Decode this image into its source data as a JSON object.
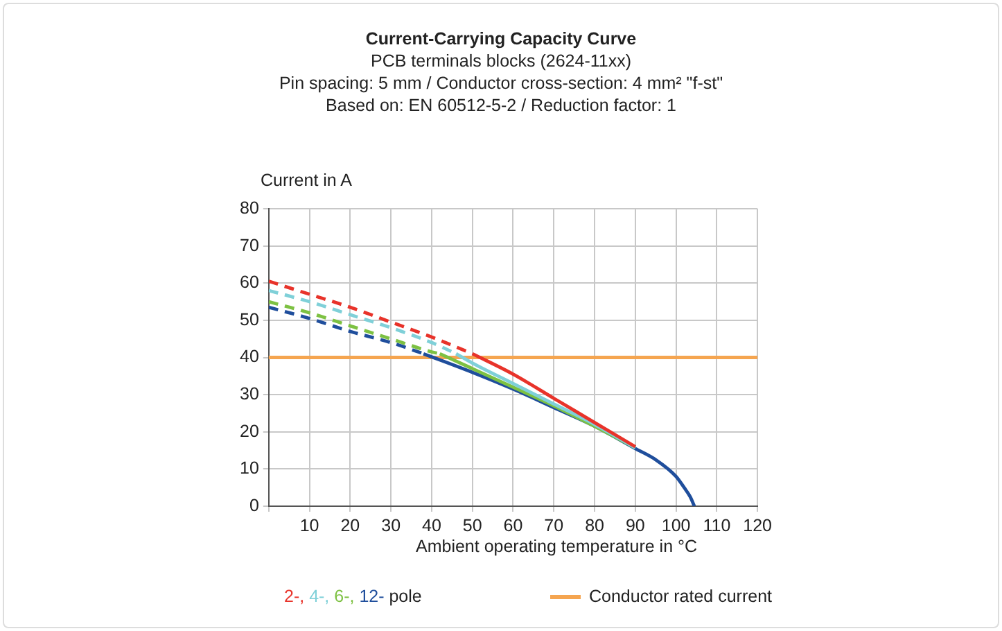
{
  "chart_data": {
    "type": "line",
    "title": "Current-Carrying Capacity Curve",
    "subtitle": "PCB terminals blocks (2624-11xx)\nPin spacing: 5 mm / Conductor cross-section: 4 mm² \"f-st\"\nBased on: EN 60512-5-2 / Reduction factor: 1",
    "xlabel": "Ambient operating temperature in °C",
    "ylabel": "Current in A",
    "legend_title": "pole",
    "xlim": [
      0,
      120
    ],
    "xticks": [
      {
        "value": 0,
        "label": null
      },
      10,
      20,
      30,
      40,
      50,
      60,
      70,
      80,
      90,
      100,
      110,
      120
    ],
    "ylim": [
      0,
      80
    ],
    "yticks": [
      0,
      10,
      20,
      30,
      40,
      50,
      60,
      70,
      80
    ],
    "grid": true,
    "legend": "bottom",
    "marker": "none",
    "series": [
      {
        "color": "#e8332a",
        "line_style": "dashed",
        "x": [
          0,
          10,
          20,
          30,
          40,
          50
        ],
        "values": [
          60.5,
          57,
          53.5,
          49.5,
          45.5,
          41
        ]
      },
      {
        "color": "#7fd0d8",
        "line_style": "dashed",
        "x": [
          0,
          10,
          20,
          30,
          40,
          46
        ],
        "values": [
          58,
          55,
          51.5,
          48,
          44,
          41
        ]
      },
      {
        "color": "#7dc142",
        "line_style": "dashed",
        "x": [
          0,
          10,
          20,
          30,
          40,
          42
        ],
        "values": [
          55,
          52,
          48.5,
          45,
          41.5,
          41
        ]
      },
      {
        "color": "#1f4e9c",
        "line_style": "dashed",
        "x": [
          0,
          10,
          20,
          30,
          38
        ],
        "values": [
          53.5,
          50.5,
          47,
          44,
          41
        ]
      },
      {
        "name": "2-,",
        "color": "#e8332a",
        "line_style": "solid",
        "x": [
          50,
          60,
          70,
          80,
          90
        ],
        "values": [
          41,
          35.5,
          29,
          22.5,
          16
        ]
      },
      {
        "name": "4-,",
        "color": "#7fd0d8",
        "line_style": "solid",
        "x": [
          46,
          50,
          60,
          70,
          80,
          90
        ],
        "values": [
          41,
          38.5,
          33,
          27.5,
          22,
          15.7
        ]
      },
      {
        "name": "6-,",
        "color": "#7dc142",
        "line_style": "solid",
        "x": [
          42,
          50,
          60,
          70,
          80,
          90
        ],
        "values": [
          41,
          37,
          32,
          27,
          21.5,
          15.7
        ]
      },
      {
        "name": "12-",
        "color": "#1f4e9c",
        "line_style": "solid",
        "x": [
          38,
          50,
          60,
          70,
          80,
          90,
          95,
          100,
          102,
          103.5,
          104.5
        ],
        "values": [
          41,
          36,
          31.5,
          26.5,
          21.5,
          15.5,
          12.5,
          8,
          5,
          2.5,
          0
        ]
      }
    ],
    "ref_lines": [
      {
        "axis": "y",
        "value": 40,
        "label": "Conductor rated current",
        "color": "#f5a550"
      }
    ]
  }
}
